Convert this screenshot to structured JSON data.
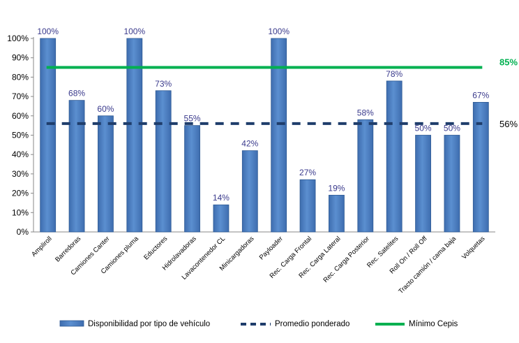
{
  "chart_data": {
    "type": "bar",
    "title": "",
    "xlabel": "",
    "ylabel": "",
    "ylim": [
      0,
      100
    ],
    "y_tick_labels": [
      "0%",
      "10%",
      "20%",
      "30%",
      "40%",
      "50%",
      "60%",
      "70%",
      "80%",
      "90%",
      "100%"
    ],
    "grid": false,
    "legend_position": "bottom",
    "categories": [
      "Ampliroll",
      "Barredoras",
      "Camiones Canter",
      "Camiones pluma",
      "Eductores",
      "Hidrolavadoras",
      "Lavacontenedor CL",
      "Minicargadoras",
      "Payloader",
      "Rec. Carga Frontal",
      "Rec. Carga Lateral",
      "Rec. Carga Posterior",
      "Rec. Satelites",
      "Roll On / Roll Off",
      "Tracto camión / cama baja",
      "Volquetas"
    ],
    "series": [
      {
        "name": "Disponibilidad por tipo de vehículo",
        "type": "bar",
        "color": "#5B8FD0",
        "values": [
          100,
          68,
          60,
          100,
          73,
          55,
          14,
          42,
          100,
          27,
          19,
          58,
          78,
          50,
          50,
          67
        ],
        "data_labels": [
          "100%",
          "68%",
          "60%",
          "100%",
          "73%",
          "55%",
          "14%",
          "42%",
          "100%",
          "27%",
          "19%",
          "58%",
          "78%",
          "50%",
          "50%",
          "67%"
        ]
      },
      {
        "name": "Promedio ponderado",
        "type": "dashed-line",
        "color": "#1F3D6B",
        "value": 56,
        "end_label": "56%"
      },
      {
        "name": "Mínimo Cepis",
        "type": "line",
        "color": "#00B050",
        "value": 85,
        "end_label": "85%"
      }
    ]
  }
}
